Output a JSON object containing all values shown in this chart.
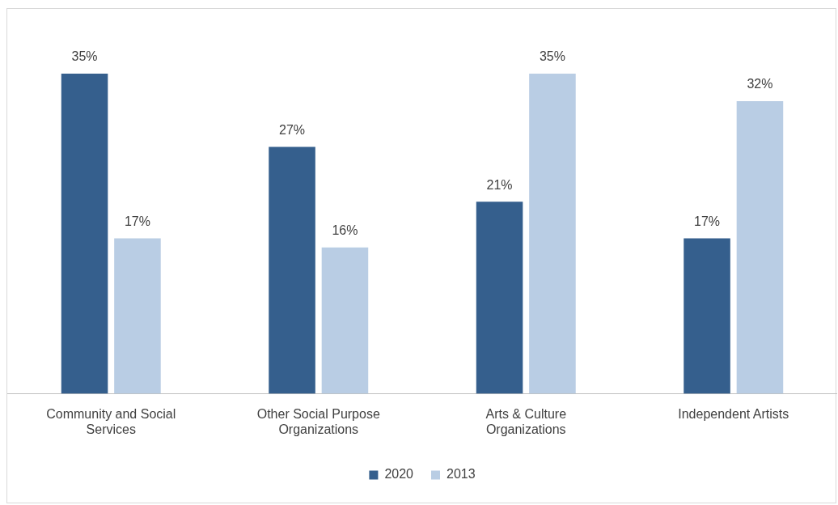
{
  "chart_data": {
    "type": "bar",
    "categories": [
      "Community and Social Services",
      "Other Social Purpose Organizations",
      "Arts & Culture Organizations",
      "Independent Artists"
    ],
    "series": [
      {
        "name": "2020",
        "color": "#355f8d",
        "values": [
          35,
          27,
          21,
          17
        ],
        "value_labels": [
          "35%",
          "27%",
          "21%",
          "17%"
        ]
      },
      {
        "name": "2013",
        "color": "#b9cde4",
        "values": [
          17,
          16,
          35,
          32
        ],
        "value_labels": [
          "17%",
          "16%",
          "35%",
          "32%"
        ]
      }
    ],
    "tick_labels": "x",
    "legend": "bottom",
    "grid": false
  }
}
